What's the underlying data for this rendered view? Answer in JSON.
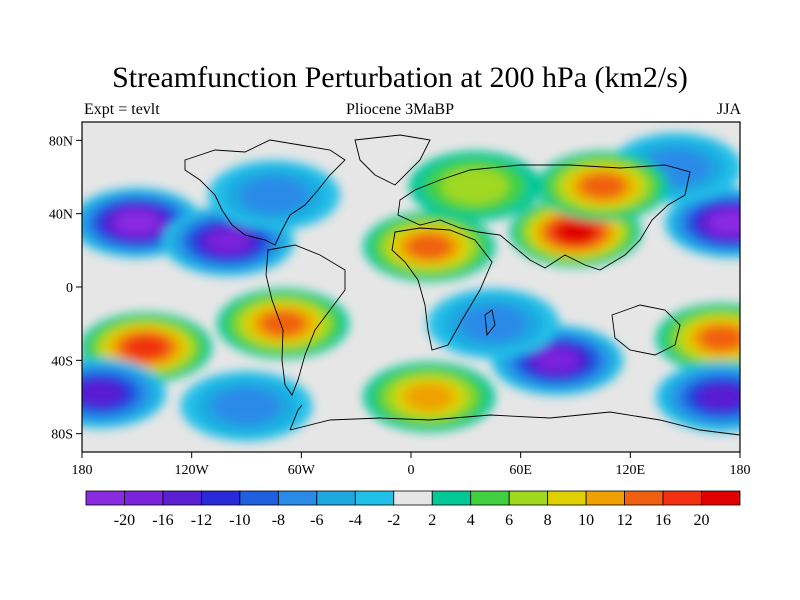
{
  "title": "Streamfunction Perturbation at 200 hPa (km2/s)",
  "subtitle_left": "Expt = tevlt",
  "subtitle_center": "Pliocene   3MaBP",
  "subtitle_right": "JJA",
  "lon_ticks": [
    {
      "lon": -180,
      "label": "180"
    },
    {
      "lon": -120,
      "label": "120W"
    },
    {
      "lon": -60,
      "label": "60W"
    },
    {
      "lon": 0,
      "label": "0"
    },
    {
      "lon": 60,
      "label": "60E"
    },
    {
      "lon": 120,
      "label": "120E"
    },
    {
      "lon": 180,
      "label": "180"
    }
  ],
  "lat_ticks": [
    {
      "lat": 80,
      "label": "80N"
    },
    {
      "lat": 40,
      "label": "40N"
    },
    {
      "lat": 0,
      "label": "0"
    },
    {
      "lat": -40,
      "label": "40S"
    },
    {
      "lat": -80,
      "label": "80S"
    }
  ],
  "colorbar": {
    "colors": [
      "#8a2be2",
      "#7a22dc",
      "#5a1fd2",
      "#2a2ad8",
      "#1f5fe0",
      "#2a8ae8",
      "#1fa8e0",
      "#20c0e8",
      "#e6e6e6",
      "#00c896",
      "#40d040",
      "#a0d820",
      "#e0d000",
      "#f0a000",
      "#f06010",
      "#f03010",
      "#e00000"
    ],
    "labels": [
      "-20",
      "-16",
      "-12",
      "-10",
      "-8",
      "-6",
      "-4",
      "-2",
      "2",
      "4",
      "6",
      "8",
      "10",
      "12",
      "16",
      "20"
    ]
  },
  "chart_data": {
    "type": "heatmap",
    "title": "Streamfunction Perturbation at 200 hPa (km2/s)",
    "x_label": "",
    "y_label": "",
    "lon_range": [
      -180,
      180
    ],
    "lat_range": [
      -90,
      90
    ],
    "contour_levels": [
      -20,
      -16,
      -12,
      -10,
      -8,
      -6,
      -4,
      -2,
      2,
      4,
      6,
      8,
      10,
      12,
      16,
      20
    ],
    "features": [
      {
        "lon": -150,
        "lat": 35,
        "value": -20
      },
      {
        "lon": -100,
        "lat": 25,
        "value": -16
      },
      {
        "lon": -75,
        "lat": 50,
        "value": -6
      },
      {
        "lon": 175,
        "lat": 35,
        "value": -20
      },
      {
        "lon": 145,
        "lat": 65,
        "value": -6
      },
      {
        "lon": 90,
        "lat": 30,
        "value": 20
      },
      {
        "lon": 105,
        "lat": 55,
        "value": 14
      },
      {
        "lon": 10,
        "lat": 22,
        "value": 14
      },
      {
        "lon": 35,
        "lat": 55,
        "value": 6
      },
      {
        "lon": -145,
        "lat": -33,
        "value": 18
      },
      {
        "lon": -70,
        "lat": -20,
        "value": 12
      },
      {
        "lon": 170,
        "lat": -28,
        "value": 14
      },
      {
        "lon": 80,
        "lat": -40,
        "value": -16
      },
      {
        "lon": 45,
        "lat": -20,
        "value": -6
      },
      {
        "lon": -170,
        "lat": -58,
        "value": -14
      },
      {
        "lon": -90,
        "lat": -65,
        "value": -6
      },
      {
        "lon": 10,
        "lat": -60,
        "value": 10
      },
      {
        "lon": 170,
        "lat": -60,
        "value": -12
      }
    ]
  }
}
